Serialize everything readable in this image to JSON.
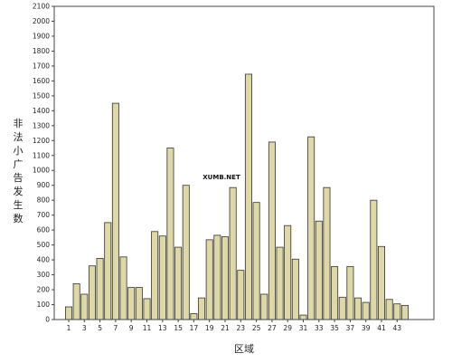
{
  "chart_data": {
    "type": "bar",
    "xlabel": "区域",
    "ylabel": "非法小广告发生数",
    "ylim": [
      0,
      2100
    ],
    "ytick_step": 100,
    "x_tick_labels": [
      "1",
      "3",
      "5",
      "7",
      "9",
      "11",
      "13",
      "15",
      "17",
      "19",
      "21",
      "23",
      "25",
      "27",
      "29",
      "31",
      "33",
      "35",
      "37",
      "39",
      "41",
      "43"
    ],
    "categories": [
      "1",
      "2",
      "3",
      "4",
      "5",
      "6",
      "7",
      "8",
      "9",
      "10",
      "11",
      "12",
      "13",
      "14",
      "15",
      "16",
      "17",
      "18",
      "19",
      "20",
      "21",
      "22",
      "23",
      "24",
      "25",
      "26",
      "27",
      "28",
      "29",
      "30",
      "31",
      "32",
      "33",
      "34",
      "35",
      "36",
      "37",
      "38",
      "39",
      "40",
      "41",
      "42",
      "43",
      "44"
    ],
    "values": [
      85,
      240,
      170,
      360,
      410,
      650,
      1450,
      420,
      215,
      215,
      140,
      590,
      560,
      1150,
      485,
      900,
      40,
      145,
      535,
      565,
      555,
      885,
      330,
      1645,
      785,
      170,
      1190,
      485,
      630,
      405,
      30,
      1225,
      660,
      885,
      355,
      150,
      355,
      145,
      115,
      800,
      490,
      135,
      105,
      95
    ],
    "bar_color": "#ddd8a6",
    "bar_edge_color": "#333333",
    "grid": false,
    "annotation": "XUMB.NET"
  }
}
